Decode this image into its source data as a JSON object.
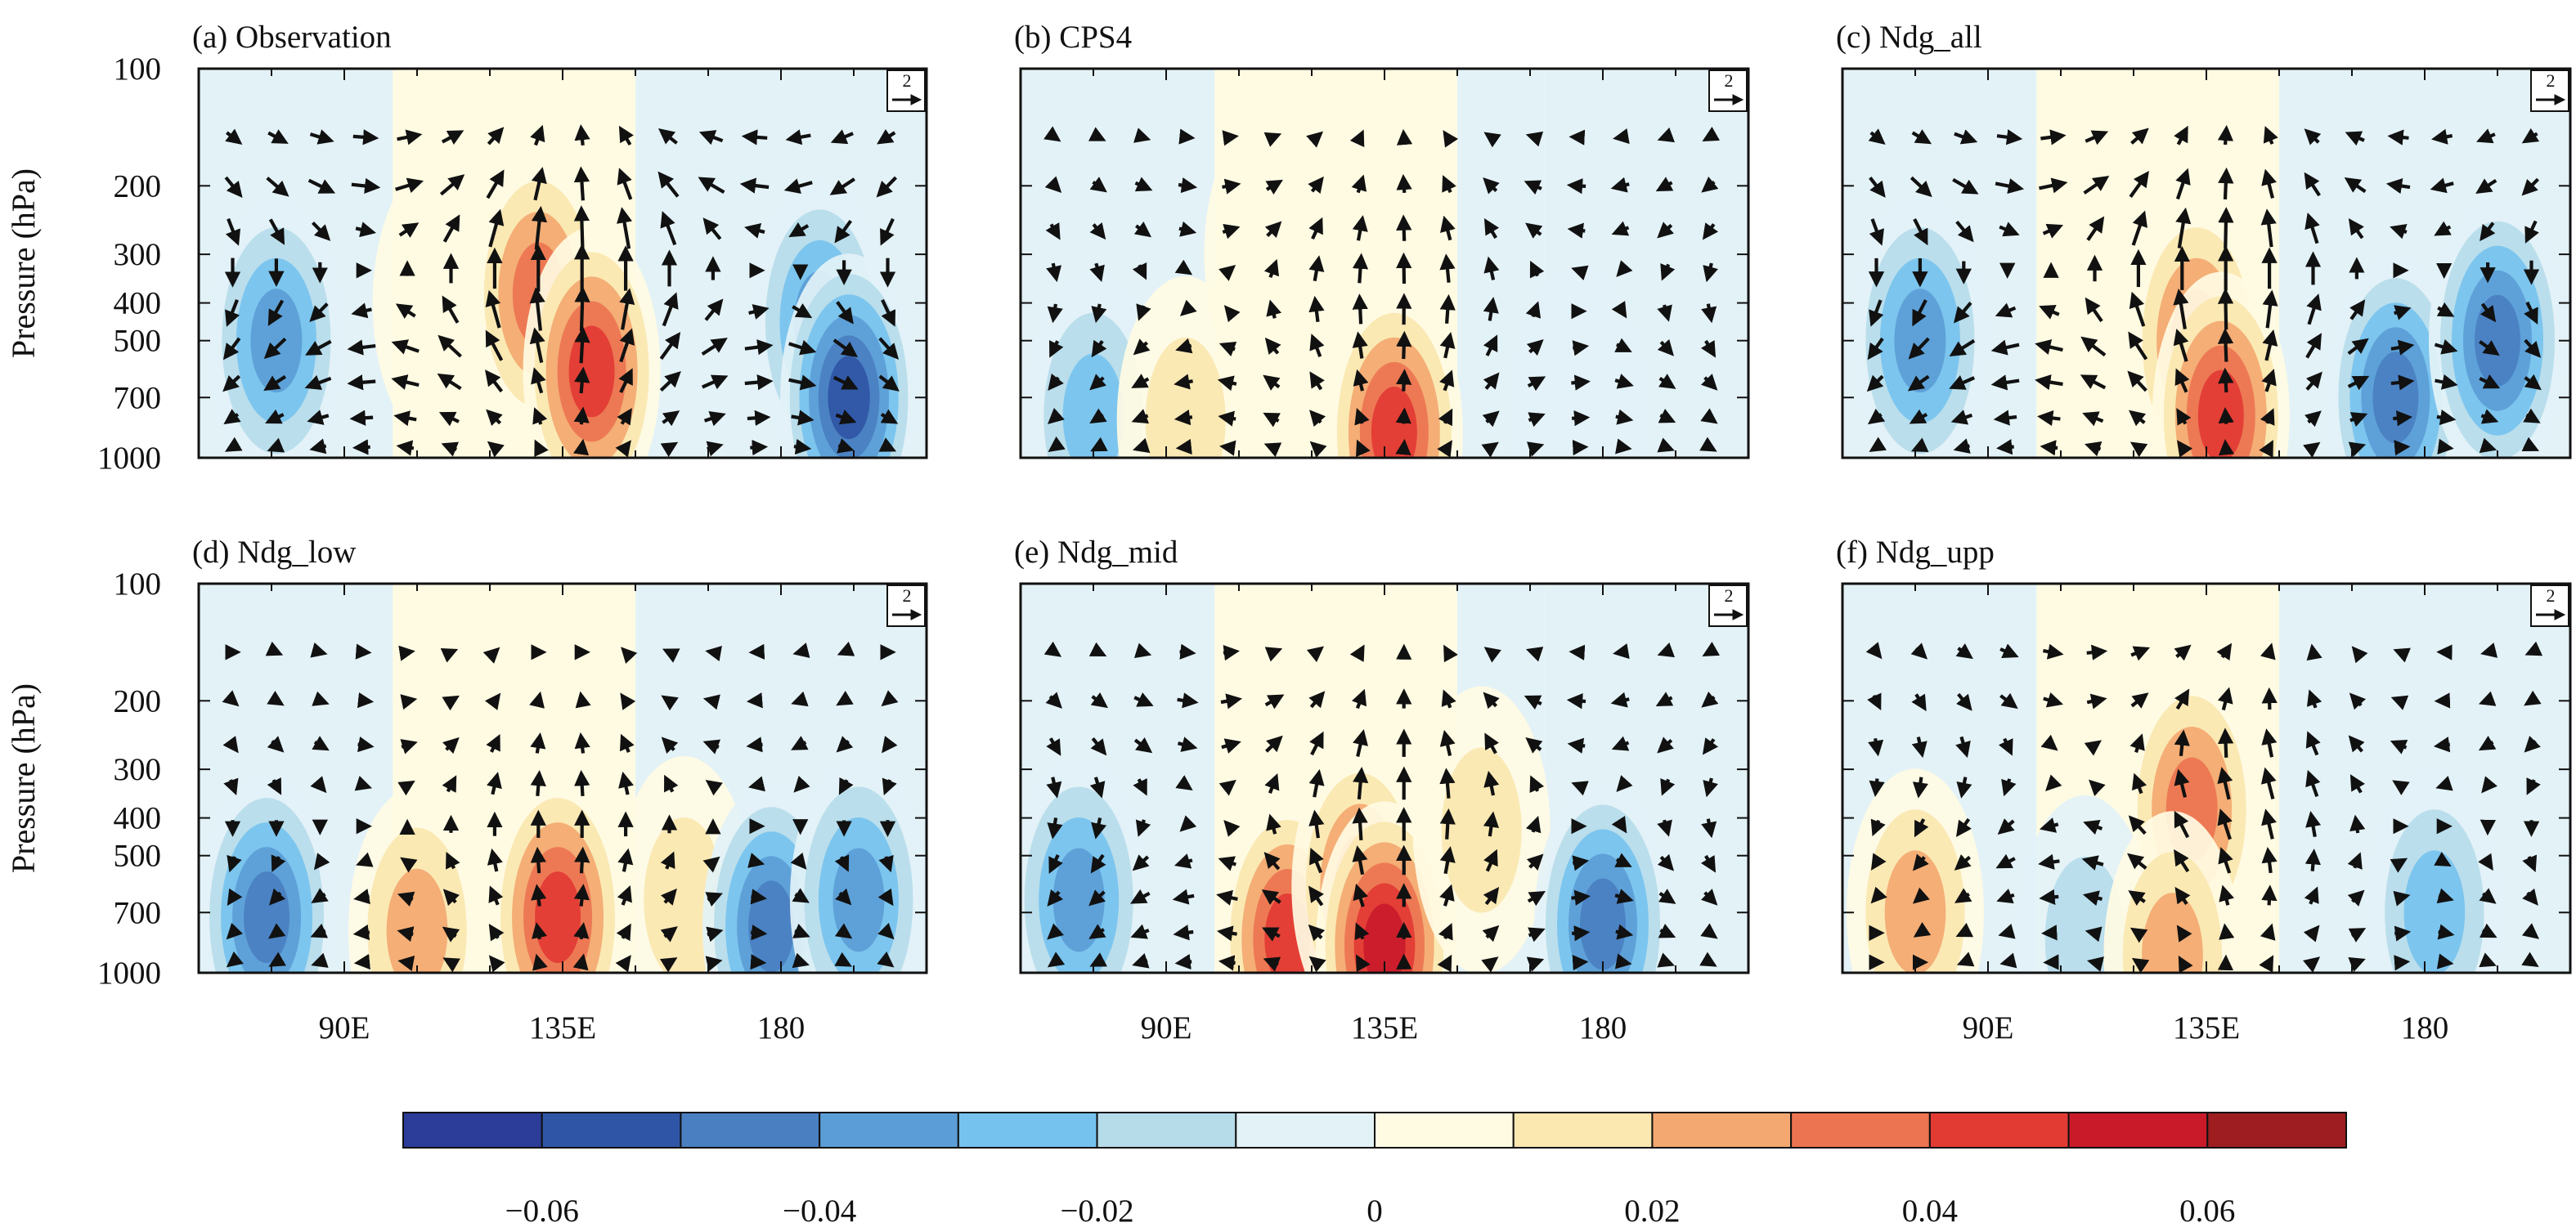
{
  "figure": {
    "y_axis_title": "Pressure (hPa)",
    "colorbar": {
      "colors": [
        "#2b3d98",
        "#2f56a6",
        "#4a7fc1",
        "#5b9dd6",
        "#76c2ee",
        "#b6dcea",
        "#e3f2f7",
        "#fffbe3",
        "#fbe7b0",
        "#f3a871",
        "#ec7451",
        "#e23b34",
        "#c91a2a",
        "#9e1d20"
      ],
      "boundaries": [
        -0.07,
        -0.06,
        -0.05,
        -0.04,
        -0.03,
        -0.02,
        -0.01,
        0,
        0.01,
        0.02,
        0.03,
        0.04,
        0.05,
        0.06,
        0.07
      ],
      "tick_values": [
        -0.06,
        -0.04,
        -0.02,
        0,
        0.02,
        0.04,
        0.06
      ],
      "tick_labels": [
        "−0.06",
        "−0.04",
        "−0.02",
        "0",
        "0.02",
        "0.04",
        "0.06"
      ]
    },
    "reference_vector_label": "2"
  },
  "chart_data": [
    {
      "type": "heatmap",
      "title": "(a) Observation",
      "ylabel": "Pressure (hPa)",
      "y_scale": "log",
      "y_reversed": true,
      "y_ticks": [
        100,
        200,
        300,
        400,
        500,
        700,
        1000
      ],
      "y_tick_labels": [
        "100",
        "200",
        "300",
        "400",
        "500",
        "700",
        "1000"
      ],
      "xlim": [
        60,
        210
      ],
      "ylim": [
        1000,
        100
      ],
      "x_ticks": [
        90,
        135,
        180
      ],
      "x_tick_labels": [
        "90E",
        "135E",
        "180"
      ],
      "anomalies": [
        {
          "lon": 76,
          "p": 500,
          "value": -0.04
        },
        {
          "lon": 110,
          "p": 400,
          "value": 0.01
        },
        {
          "lon": 130,
          "p": 380,
          "value": 0.04
        },
        {
          "lon": 141,
          "p": 600,
          "value": 0.05
        },
        {
          "lon": 188,
          "p": 450,
          "value": -0.04
        },
        {
          "lon": 194,
          "p": 700,
          "value": -0.06
        }
      ],
      "circulation": [
        {
          "center_lon": 98,
          "center_p": 330,
          "sense": "clockwise",
          "strength": 2
        },
        {
          "center_lon": 176,
          "center_p": 330,
          "sense": "anticlockwise",
          "strength": 2
        }
      ]
    },
    {
      "type": "heatmap",
      "title": "(b) CPS4",
      "xlim": [
        60,
        210
      ],
      "ylim": [
        1000,
        100
      ],
      "x_ticks": [
        90,
        135,
        180
      ],
      "x_tick_labels": [
        "90E",
        "135E",
        "180"
      ],
      "anomalies": [
        {
          "lon": 75,
          "p": 780,
          "value": -0.03
        },
        {
          "lon": 94,
          "p": 800,
          "value": 0.02
        },
        {
          "lon": 137,
          "p": 860,
          "value": 0.05
        },
        {
          "lon": 175,
          "p": 750,
          "value": -0.01
        },
        {
          "lon": 112,
          "p": 300,
          "value": 0.01
        }
      ],
      "circulation": [
        {
          "center_lon": 100,
          "center_p": 380,
          "sense": "clockwise",
          "strength": 1.2
        },
        {
          "center_lon": 175,
          "center_p": 380,
          "sense": "anticlockwise",
          "strength": 1.2
        }
      ]
    },
    {
      "type": "heatmap",
      "title": "(c) Ndg_all",
      "xlim": [
        60,
        210
      ],
      "ylim": [
        1000,
        100
      ],
      "x_ticks": [
        90,
        135,
        180
      ],
      "x_tick_labels": [
        "90E",
        "135E",
        "180"
      ],
      "anomalies": [
        {
          "lon": 76,
          "p": 500,
          "value": -0.04
        },
        {
          "lon": 133,
          "p": 500,
          "value": 0.04
        },
        {
          "lon": 138,
          "p": 780,
          "value": 0.05
        },
        {
          "lon": 174,
          "p": 700,
          "value": -0.05
        },
        {
          "lon": 195,
          "p": 500,
          "value": -0.05
        }
      ],
      "circulation": [
        {
          "center_lon": 100,
          "center_p": 330,
          "sense": "clockwise",
          "strength": 2
        },
        {
          "center_lon": 176,
          "center_p": 330,
          "sense": "anticlockwise",
          "strength": 1.6
        }
      ]
    },
    {
      "type": "heatmap",
      "title": "(d) Ndg_low",
      "ylabel": "Pressure (hPa)",
      "y_scale": "log",
      "y_reversed": true,
      "y_ticks": [
        100,
        200,
        300,
        400,
        500,
        700,
        1000
      ],
      "y_tick_labels": [
        "100",
        "200",
        "300",
        "400",
        "500",
        "700",
        "1000"
      ],
      "xlim": [
        60,
        210
      ],
      "ylim": [
        1000,
        100
      ],
      "x_ticks": [
        90,
        135,
        180
      ],
      "x_tick_labels": [
        "90E",
        "135E",
        "180"
      ],
      "anomalies": [
        {
          "lon": 74,
          "p": 720,
          "value": -0.05
        },
        {
          "lon": 105,
          "p": 780,
          "value": 0.03
        },
        {
          "lon": 134,
          "p": 720,
          "value": 0.05
        },
        {
          "lon": 160,
          "p": 650,
          "value": 0.02
        },
        {
          "lon": 178,
          "p": 760,
          "value": -0.05
        },
        {
          "lon": 196,
          "p": 650,
          "value": -0.04
        }
      ],
      "circulation": [
        {
          "center_lon": 100,
          "center_p": 420,
          "sense": "clockwise",
          "strength": 1.0
        },
        {
          "center_lon": 170,
          "center_p": 420,
          "sense": "anticlockwise",
          "strength": 1.0
        }
      ]
    },
    {
      "type": "heatmap",
      "title": "(e) Ndg_mid",
      "xlim": [
        60,
        210
      ],
      "ylim": [
        1000,
        100
      ],
      "x_ticks": [
        90,
        135,
        180
      ],
      "x_tick_labels": [
        "90E",
        "135E",
        "180"
      ],
      "anomalies": [
        {
          "lon": 72,
          "p": 650,
          "value": -0.04
        },
        {
          "lon": 115,
          "p": 820,
          "value": 0.05
        },
        {
          "lon": 130,
          "p": 600,
          "value": 0.04
        },
        {
          "lon": 135,
          "p": 850,
          "value": 0.06
        },
        {
          "lon": 155,
          "p": 430,
          "value": 0.02
        },
        {
          "lon": 180,
          "p": 750,
          "value": -0.05
        }
      ],
      "circulation": [
        {
          "center_lon": 100,
          "center_p": 380,
          "sense": "clockwise",
          "strength": 1.4
        },
        {
          "center_lon": 175,
          "center_p": 380,
          "sense": "anticlockwise",
          "strength": 1.2
        }
      ]
    },
    {
      "type": "heatmap",
      "title": "(f) Ndg_upp",
      "xlim": [
        60,
        210
      ],
      "ylim": [
        1000,
        100
      ],
      "x_ticks": [
        90,
        135,
        180
      ],
      "x_tick_labels": [
        "90E",
        "135E",
        "180"
      ],
      "anomalies": [
        {
          "lon": 75,
          "p": 700,
          "value": 0.03
        },
        {
          "lon": 132,
          "p": 380,
          "value": 0.04
        },
        {
          "lon": 110,
          "p": 820,
          "value": -0.02
        },
        {
          "lon": 182,
          "p": 700,
          "value": -0.03
        },
        {
          "lon": 128,
          "p": 900,
          "value": 0.03
        }
      ],
      "circulation": [
        {
          "center_lon": 110,
          "center_p": 300,
          "sense": "clockwise",
          "strength": 1.4
        },
        {
          "center_lon": 176,
          "center_p": 420,
          "sense": "anticlockwise",
          "strength": 1.0
        }
      ]
    }
  ]
}
